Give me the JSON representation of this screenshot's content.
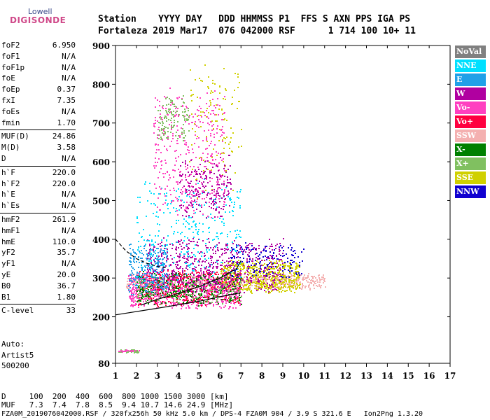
{
  "logo": {
    "line1": "Lowell",
    "line2": "DIGISONDE"
  },
  "header": {
    "labels": "Station    YYYY DAY   DDD HHMMSS P1  FFS S AXN PPS IGA PS",
    "values": "Fortaleza 2019 Mar17  076 042000 RSF      1 714 100 10+ 11"
  },
  "params": [
    {
      "name": "foF2",
      "value": "6.950"
    },
    {
      "name": "foF1",
      "value": "N/A"
    },
    {
      "name": "foF1p",
      "value": "N/A"
    },
    {
      "name": "foE",
      "value": "N/A"
    },
    {
      "name": "foEp",
      "value": "0.37"
    },
    {
      "name": "fxI",
      "value": "7.35"
    },
    {
      "name": "foEs",
      "value": "N/A"
    },
    {
      "name": "fmin",
      "value": "1.70"
    },
    {
      "name": "MUF(D)",
      "value": "24.86"
    },
    {
      "name": "M(D)",
      "value": "3.58"
    },
    {
      "name": "D",
      "value": "N/A"
    },
    {
      "name": "h`F",
      "value": "220.0"
    },
    {
      "name": "h`F2",
      "value": "220.0"
    },
    {
      "name": "h`E",
      "value": "N/A"
    },
    {
      "name": "h`Es",
      "value": "N/A"
    },
    {
      "name": "hmF2",
      "value": "261.9"
    },
    {
      "name": "hmF1",
      "value": "N/A"
    },
    {
      "name": "hmE",
      "value": "110.0"
    },
    {
      "name": "yF2",
      "value": "35.7"
    },
    {
      "name": "yF1",
      "value": "N/A"
    },
    {
      "name": "yE",
      "value": "20.0"
    },
    {
      "name": "B0",
      "value": "36.7"
    },
    {
      "name": "B1",
      "value": "1.80"
    },
    {
      "name": "C-level",
      "value": "33"
    }
  ],
  "auto": {
    "line1": "Auto:",
    "line2": "Artist5",
    "line3": "500200"
  },
  "footer": {
    "d_row": "D     100  200  400  600  800 1000 1500 3000 [km]",
    "muf_row": "MUF   7.3  7.4  7.8  8.5  9.4 10.7 14.6 24.9 [MHz]",
    "file_row": "FZA0M_2019076042000.RSF / 320fx256h 50 kHz 5.0 km / DPS-4 FZA0M 904 / 3.9 S 321.6 E   Ion2Png 1.3.20"
  },
  "legend": [
    {
      "label": "NoVal",
      "color": "#808080"
    },
    {
      "label": "NNE",
      "color": "#00e0ff"
    },
    {
      "label": "E",
      "color": "#20a0e8"
    },
    {
      "label": "W",
      "color": "#b000a0"
    },
    {
      "label": "Vo-",
      "color": "#ff40c0"
    },
    {
      "label": "Vo+",
      "color": "#ff0040"
    },
    {
      "label": "SSW",
      "color": "#f4b0b0"
    },
    {
      "label": "X-",
      "color": "#008000"
    },
    {
      "label": "X+",
      "color": "#80c060"
    },
    {
      "label": "SSE",
      "color": "#d0d000"
    },
    {
      "label": "NNW",
      "color": "#1000d0"
    }
  ],
  "chart_data": {
    "type": "scatter",
    "xlim": [
      1,
      17
    ],
    "ylim": [
      80,
      900
    ],
    "x_ticks": [
      1,
      2,
      3,
      4,
      5,
      6,
      7,
      8,
      9,
      10,
      11,
      12,
      13,
      14,
      15,
      16,
      17
    ],
    "y_ticks": [
      80,
      200,
      300,
      400,
      500,
      600,
      700,
      800,
      900
    ],
    "clusters": [
      {
        "mode": "SSW",
        "x": [
          1.5,
          11.0
        ],
        "y": [
          270,
          315
        ],
        "n": 700
      },
      {
        "mode": "SSE",
        "x": [
          6.0,
          9.8
        ],
        "y": [
          260,
          350
        ],
        "n": 600
      },
      {
        "mode": "Vo-",
        "x": [
          1.6,
          7.0
        ],
        "y": [
          220,
          320
        ],
        "n": 900
      },
      {
        "mode": "Vo+",
        "x": [
          2.0,
          7.0
        ],
        "y": [
          225,
          330
        ],
        "n": 350
      },
      {
        "mode": "X-",
        "x": [
          2.0,
          7.0
        ],
        "y": [
          230,
          320
        ],
        "n": 350
      },
      {
        "mode": "X+",
        "x": [
          2.0,
          7.0
        ],
        "y": [
          230,
          310
        ],
        "n": 150
      },
      {
        "mode": "W",
        "x": [
          2.5,
          9.0
        ],
        "y": [
          260,
          410
        ],
        "n": 600
      },
      {
        "mode": "E",
        "x": [
          1.6,
          3.5
        ],
        "y": [
          250,
          400
        ],
        "n": 250
      },
      {
        "mode": "NNE",
        "x": [
          2.0,
          7.0
        ],
        "y": [
          280,
          560
        ],
        "n": 300
      },
      {
        "mode": "NNW",
        "x": [
          6.5,
          10.0
        ],
        "y": [
          300,
          395
        ],
        "n": 150
      },
      {
        "mode": "Vo-",
        "x": [
          2.8,
          6.2
        ],
        "y": [
          450,
          800
        ],
        "n": 400
      },
      {
        "mode": "X+",
        "x": [
          3.0,
          4.5
        ],
        "y": [
          650,
          780
        ],
        "n": 120
      },
      {
        "mode": "SSE",
        "x": [
          4.5,
          7.0
        ],
        "y": [
          500,
          890
        ],
        "n": 120
      },
      {
        "mode": "W",
        "x": [
          4.0,
          6.5
        ],
        "y": [
          450,
          620
        ],
        "n": 200
      },
      {
        "mode": "X+",
        "x": [
          1.1,
          2.1
        ],
        "y": [
          108,
          118
        ],
        "n": 40
      },
      {
        "mode": "Vo-",
        "x": [
          1.1,
          2.1
        ],
        "y": [
          110,
          116
        ],
        "n": 20
      }
    ],
    "curves": [
      {
        "style": "solid",
        "x": [
          1,
          3,
          5,
          6,
          7
        ],
        "y": [
          205,
          222,
          240,
          252,
          262
        ]
      },
      {
        "style": "solid",
        "x": [
          2.2,
          3,
          4,
          5,
          6,
          6.8,
          7
        ],
        "y": [
          230,
          245,
          260,
          278,
          300,
          325,
          345
        ]
      },
      {
        "style": "dashed",
        "x": [
          1,
          1.5,
          2,
          2.5,
          3,
          3.5
        ],
        "y": [
          400,
          370,
          350,
          338,
          330,
          326
        ]
      }
    ]
  }
}
